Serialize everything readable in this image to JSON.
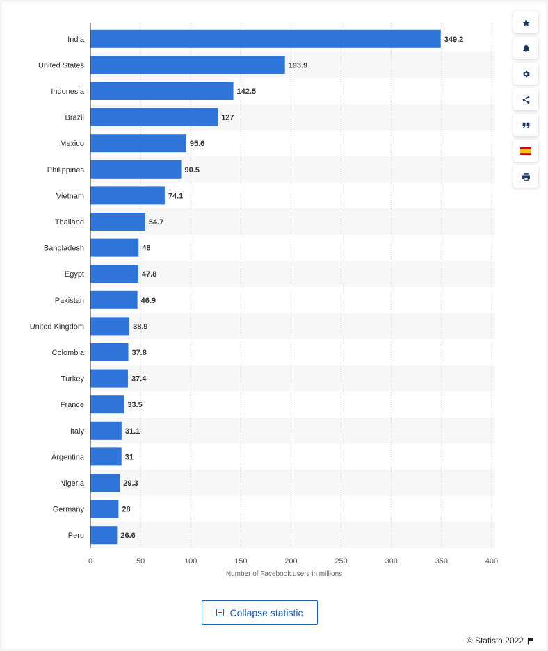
{
  "chart_data": {
    "type": "bar",
    "orientation": "horizontal",
    "categories": [
      "India",
      "United States",
      "Indonesia",
      "Brazil",
      "Mexico",
      "Philippines",
      "Vietnam",
      "Thailand",
      "Bangladesh",
      "Egypt",
      "Pakistan",
      "United Kingdom",
      "Colombia",
      "Turkey",
      "France",
      "Italy",
      "Argentina",
      "Nigeria",
      "Germany",
      "Peru"
    ],
    "values": [
      349.2,
      193.9,
      142.5,
      127,
      95.6,
      90.5,
      74.1,
      54.7,
      48,
      47.8,
      46.9,
      38.9,
      37.8,
      37.4,
      33.5,
      31.1,
      31,
      29.3,
      28,
      26.6
    ],
    "value_labels": [
      "349.2",
      "193.9",
      "142.5",
      "127",
      "95.6",
      "90.5",
      "74.1",
      "54.7",
      "48",
      "47.8",
      "46.9",
      "38.9",
      "37.8",
      "37.4",
      "33.5",
      "31.1",
      "31",
      "29.3",
      "28",
      "26.6"
    ],
    "xlabel": "Number of Facebook users in millions",
    "ylabel": "",
    "xlim": [
      0,
      400
    ],
    "xticks": [
      0,
      50,
      100,
      150,
      200,
      250,
      300,
      350,
      400
    ],
    "grid": "vertical-dotted",
    "bar_color": "#2f74d8",
    "stripe_color": "#f7f7f7"
  },
  "toolbar": {
    "items": [
      {
        "name": "favorite",
        "icon": "star-icon"
      },
      {
        "name": "notifications",
        "icon": "bell-icon"
      },
      {
        "name": "settings",
        "icon": "gear-icon"
      },
      {
        "name": "share",
        "icon": "share-icon"
      },
      {
        "name": "cite",
        "icon": "quote-icon"
      },
      {
        "name": "language",
        "icon": "spanish-flag-icon"
      },
      {
        "name": "print",
        "icon": "print-icon"
      }
    ]
  },
  "collapse": {
    "label": "Collapse statistic"
  },
  "footer": {
    "credit": "© Statista 2022"
  },
  "colors": {
    "accent": "#1a5fb4",
    "bar": "#2f74d8"
  }
}
